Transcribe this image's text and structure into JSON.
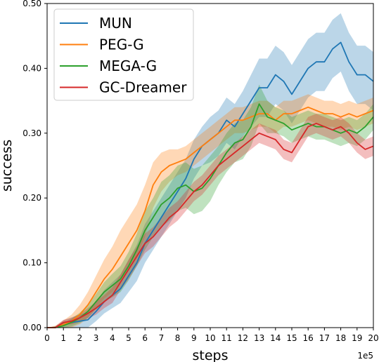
{
  "chart_data": {
    "type": "line",
    "xlabel": "steps",
    "ylabel": "success",
    "x_multiplier_label": "1e5",
    "xlim": [
      0,
      20
    ],
    "ylim": [
      0,
      0.5
    ],
    "xticks": [
      0,
      1,
      2,
      3,
      4,
      5,
      6,
      7,
      8,
      9,
      10,
      11,
      12,
      13,
      14,
      15,
      16,
      17,
      18,
      19,
      20
    ],
    "yticks": [
      0.0,
      0.1,
      0.2,
      0.3,
      0.4,
      0.5
    ],
    "ytick_labels": [
      "0.00",
      "0.10",
      "0.20",
      "0.30",
      "0.40",
      "0.50"
    ],
    "grid": false,
    "legend_position": "top-left",
    "x": [
      0,
      0.5,
      1,
      1.5,
      2,
      2.5,
      3,
      3.5,
      4,
      4.5,
      5,
      5.5,
      6,
      6.5,
      7,
      7.5,
      8,
      8.5,
      9,
      9.5,
      10,
      10.5,
      11,
      11.5,
      12,
      12.5,
      13,
      13.5,
      14,
      14.5,
      15,
      15.5,
      16,
      16.5,
      17,
      17.5,
      18,
      18.5,
      19,
      19.5,
      20
    ],
    "series": [
      {
        "name": "MUN",
        "color": "#1f77b4",
        "values": [
          0,
          0,
          0.005,
          0.008,
          0.01,
          0.012,
          0.025,
          0.04,
          0.05,
          0.06,
          0.08,
          0.1,
          0.13,
          0.15,
          0.17,
          0.19,
          0.21,
          0.23,
          0.26,
          0.28,
          0.29,
          0.3,
          0.32,
          0.31,
          0.33,
          0.35,
          0.37,
          0.37,
          0.39,
          0.38,
          0.36,
          0.38,
          0.4,
          0.41,
          0.41,
          0.43,
          0.44,
          0.41,
          0.39,
          0.39,
          0.38
        ],
        "band": [
          0,
          0.002,
          0.006,
          0.008,
          0.01,
          0.012,
          0.015,
          0.018,
          0.02,
          0.022,
          0.025,
          0.028,
          0.03,
          0.03,
          0.03,
          0.03,
          0.03,
          0.03,
          0.03,
          0.03,
          0.035,
          0.035,
          0.035,
          0.035,
          0.035,
          0.04,
          0.045,
          0.045,
          0.045,
          0.045,
          0.045,
          0.045,
          0.045,
          0.045,
          0.045,
          0.045,
          0.045,
          0.045,
          0.045,
          0.045,
          0.045
        ]
      },
      {
        "name": "PEG-G",
        "color": "#ff7f0e",
        "values": [
          0,
          0,
          0.005,
          0.01,
          0.02,
          0.035,
          0.055,
          0.075,
          0.09,
          0.11,
          0.13,
          0.15,
          0.18,
          0.22,
          0.24,
          0.25,
          0.255,
          0.26,
          0.27,
          0.28,
          0.29,
          0.3,
          0.31,
          0.32,
          0.32,
          0.325,
          0.33,
          0.33,
          0.32,
          0.33,
          0.33,
          0.335,
          0.34,
          0.335,
          0.33,
          0.33,
          0.325,
          0.33,
          0.325,
          0.33,
          0.335
        ],
        "band": [
          0,
          0.003,
          0.006,
          0.01,
          0.015,
          0.02,
          0.025,
          0.03,
          0.035,
          0.04,
          0.04,
          0.04,
          0.04,
          0.035,
          0.03,
          0.025,
          0.02,
          0.02,
          0.02,
          0.02,
          0.02,
          0.02,
          0.02,
          0.02,
          0.02,
          0.02,
          0.02,
          0.02,
          0.02,
          0.02,
          0.02,
          0.02,
          0.02,
          0.02,
          0.02,
          0.02,
          0.02,
          0.02,
          0.02,
          0.02,
          0.02
        ]
      },
      {
        "name": "MEGA-G",
        "color": "#2ca02c",
        "values": [
          0,
          0,
          0.003,
          0.008,
          0.015,
          0.025,
          0.04,
          0.055,
          0.065,
          0.075,
          0.095,
          0.12,
          0.15,
          0.17,
          0.19,
          0.2,
          0.215,
          0.22,
          0.21,
          0.215,
          0.23,
          0.25,
          0.27,
          0.285,
          0.29,
          0.31,
          0.345,
          0.325,
          0.32,
          0.315,
          0.305,
          0.31,
          0.315,
          0.31,
          0.31,
          0.305,
          0.3,
          0.305,
          0.3,
          0.31,
          0.325
        ],
        "band": [
          0,
          0.002,
          0.004,
          0.006,
          0.008,
          0.01,
          0.012,
          0.015,
          0.018,
          0.02,
          0.022,
          0.025,
          0.03,
          0.03,
          0.035,
          0.035,
          0.035,
          0.035,
          0.035,
          0.035,
          0.035,
          0.03,
          0.03,
          0.03,
          0.03,
          0.03,
          0.03,
          0.025,
          0.02,
          0.02,
          0.02,
          0.02,
          0.02,
          0.02,
          0.02,
          0.02,
          0.02,
          0.02,
          0.02,
          0.02,
          0.02
        ]
      },
      {
        "name": "GC-Dreamer",
        "color": "#d62728",
        "values": [
          0,
          0,
          0.008,
          0.01,
          0.015,
          0.022,
          0.03,
          0.04,
          0.05,
          0.07,
          0.09,
          0.11,
          0.13,
          0.14,
          0.155,
          0.17,
          0.18,
          0.195,
          0.21,
          0.22,
          0.235,
          0.25,
          0.26,
          0.27,
          0.28,
          0.29,
          0.3,
          0.295,
          0.29,
          0.275,
          0.27,
          0.29,
          0.31,
          0.315,
          0.31,
          0.305,
          0.31,
          0.3,
          0.285,
          0.275,
          0.28
        ],
        "band": [
          0,
          0.002,
          0.004,
          0.005,
          0.006,
          0.008,
          0.01,
          0.01,
          0.012,
          0.012,
          0.015,
          0.015,
          0.015,
          0.015,
          0.015,
          0.015,
          0.015,
          0.015,
          0.015,
          0.015,
          0.015,
          0.015,
          0.015,
          0.015,
          0.015,
          0.015,
          0.015,
          0.015,
          0.015,
          0.015,
          0.015,
          0.015,
          0.015,
          0.015,
          0.015,
          0.015,
          0.015,
          0.015,
          0.015,
          0.015,
          0.015
        ]
      }
    ]
  }
}
